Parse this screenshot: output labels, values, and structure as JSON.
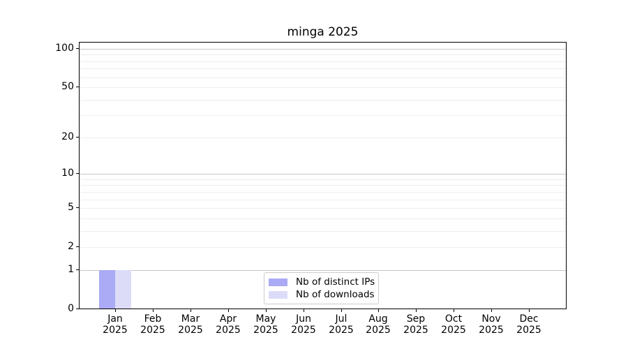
{
  "chart_data": {
    "type": "bar",
    "title": "minga 2025",
    "categories": [
      "Jan",
      "Feb",
      "Mar",
      "Apr",
      "May",
      "Jun",
      "Jul",
      "Aug",
      "Sep",
      "Oct",
      "Nov",
      "Dec"
    ],
    "year_label": "2025",
    "series": [
      {
        "name": "Nb of distinct IPs",
        "color": "#aaaaf5",
        "values": [
          1,
          0,
          0,
          0,
          0,
          0,
          0,
          0,
          0,
          0,
          0,
          0
        ]
      },
      {
        "name": "Nb of downloads",
        "color": "#dcdcf9",
        "values": [
          1,
          0,
          0,
          0,
          0,
          0,
          0,
          0,
          0,
          0,
          0,
          0
        ]
      }
    ],
    "xlabel": "",
    "ylabel": "",
    "yscale": "log1p",
    "ylim": [
      0,
      113
    ],
    "xlim": [
      -0.965,
      12.0
    ],
    "yticks": [
      0,
      1,
      2,
      5,
      10,
      20,
      50,
      100
    ],
    "major_gridline_values": [
      1,
      10,
      100
    ],
    "minor_gridline_values": [
      2,
      3,
      4,
      5,
      6,
      7,
      8,
      9,
      20,
      30,
      40,
      50,
      60,
      70,
      80,
      90
    ],
    "grid": "horizontal",
    "legend_position": "lower center",
    "bar_half_width": 0.42
  },
  "colors": {
    "background": "#ffffff",
    "axis": "#000000",
    "major_grid": "#c6c6c6",
    "minor_grid": "#ededed",
    "legend_border": "#cccccc",
    "text": "#000000"
  }
}
